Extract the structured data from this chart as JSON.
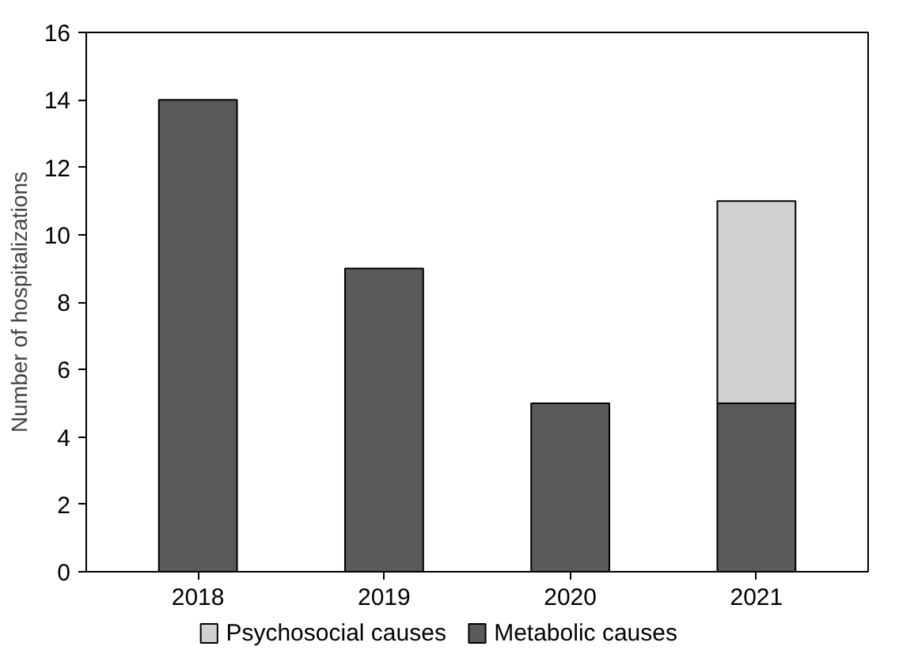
{
  "chart_data": {
    "type": "bar",
    "ylabel": "Number of hospitalizations",
    "categories": [
      "2018",
      "2019",
      "2020",
      "2021"
    ],
    "stacked": true,
    "series": [
      {
        "name": "Metabolic causes",
        "color": "#5a5a5a",
        "values": [
          14,
          9,
          5,
          5
        ]
      },
      {
        "name": "Psychosocial causes",
        "color": "#d0d0d0",
        "values": [
          null,
          null,
          null,
          6
        ]
      }
    ],
    "ylim": [
      0,
      16
    ],
    "yticks": [
      0,
      2,
      4,
      6,
      8,
      10,
      12,
      14,
      16
    ],
    "grid": false,
    "legend": "bottom"
  }
}
